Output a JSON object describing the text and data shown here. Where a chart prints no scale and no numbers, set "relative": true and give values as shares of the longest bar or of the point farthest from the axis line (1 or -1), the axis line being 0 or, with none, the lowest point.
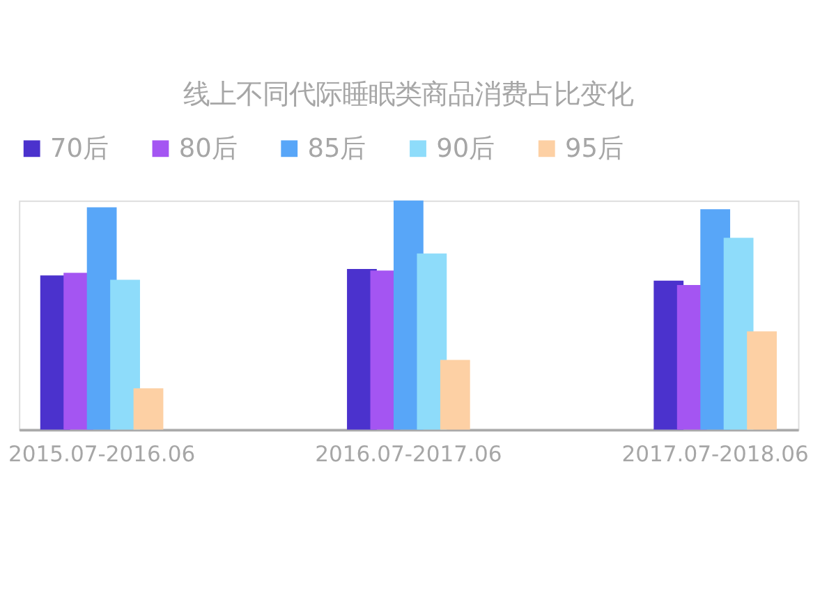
{
  "chart_data": {
    "type": "bar",
    "title": "线上不同代际睡眠类商品消费占比变化",
    "relative": true,
    "legend": "top",
    "categories": [
      "2015.07-2016.06",
      "2016.07-2017.06",
      "2017.07-2018.06"
    ],
    "series": [
      {
        "name": "70后",
        "color": "#4b32cd",
        "values": [
          0.673,
          0.701,
          0.65
        ]
      },
      {
        "name": "80后",
        "color": "#a455f2",
        "values": [
          0.684,
          0.694,
          0.631
        ]
      },
      {
        "name": "85后",
        "color": "#58a6f8",
        "values": [
          0.97,
          1,
          0.962
        ]
      },
      {
        "name": "90后",
        "color": "#8edcfa",
        "values": [
          0.654,
          0.769,
          0.837
        ]
      },
      {
        "name": "95后",
        "color": "#fdd0a4",
        "values": [
          0.18,
          0.304,
          0.429
        ]
      }
    ]
  }
}
